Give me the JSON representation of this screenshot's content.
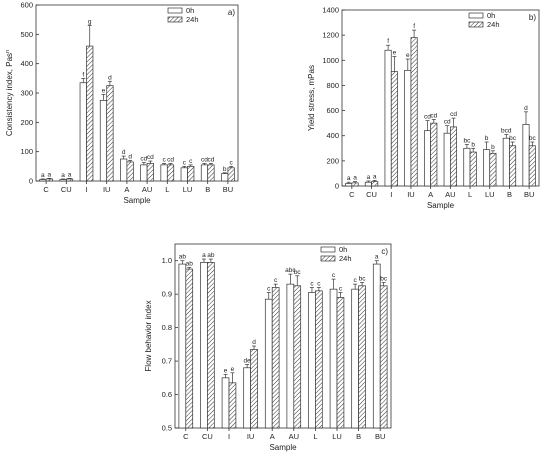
{
  "chart_data": [
    {
      "panel": "a)",
      "type": "bar",
      "ylabel": "Consistency index, Pas",
      "ylabel_sup": "n",
      "xlabel": "Sample",
      "ylim": [
        0,
        600
      ],
      "yticks": [
        0,
        100,
        200,
        300,
        400,
        500,
        600
      ],
      "grid": false,
      "legend_position": "top-right",
      "categories": [
        "C",
        "CU",
        "I",
        "IU",
        "A",
        "AU",
        "L",
        "LU",
        "B",
        "BU"
      ],
      "series": [
        {
          "name": "0h",
          "values": [
            5,
            5,
            335,
            275,
            75,
            55,
            55,
            45,
            55,
            25
          ],
          "errors": [
            2,
            2,
            15,
            20,
            10,
            8,
            5,
            5,
            5,
            3
          ],
          "letters": [
            "a",
            "a",
            "f",
            "e",
            "d",
            "cd",
            "c",
            "c",
            "cd",
            "b"
          ]
        },
        {
          "name": "24h",
          "values": [
            7,
            7,
            460,
            325,
            65,
            60,
            55,
            50,
            55,
            45
          ],
          "errors": [
            2,
            2,
            70,
            15,
            5,
            8,
            5,
            5,
            5,
            5
          ],
          "letters": [
            "a",
            "a",
            "g",
            "d",
            "d",
            "cd",
            "cd",
            "c",
            "cd",
            "c"
          ]
        }
      ]
    },
    {
      "panel": "b)",
      "type": "bar",
      "ylabel": "Yield stress, mPas",
      "xlabel": "Sample",
      "ylim": [
        0,
        1400
      ],
      "yticks": [
        0,
        200,
        400,
        600,
        800,
        1000,
        1200,
        1400
      ],
      "grid": false,
      "legend_position": "top-right",
      "categories": [
        "C",
        "CU",
        "I",
        "IU",
        "A",
        "AU",
        "L",
        "LU",
        "B",
        "BU"
      ],
      "series": [
        {
          "name": "0h",
          "values": [
            20,
            30,
            1080,
            920,
            440,
            420,
            300,
            290,
            380,
            490
          ],
          "errors": [
            10,
            10,
            40,
            90,
            80,
            60,
            30,
            60,
            30,
            100
          ],
          "letters": [
            "a",
            "a",
            "f",
            "e",
            "cd",
            "cd",
            "bc",
            "b",
            "bcd",
            "d"
          ]
        },
        {
          "name": "24h",
          "values": [
            25,
            35,
            910,
            1180,
            500,
            470,
            270,
            260,
            320,
            320
          ],
          "errors": [
            10,
            10,
            120,
            60,
            30,
            70,
            30,
            20,
            30,
            30
          ],
          "letters": [
            "a",
            "a",
            "e",
            "f",
            "cd",
            "cd",
            "b",
            "b",
            "bc",
            "bc"
          ]
        }
      ]
    },
    {
      "panel": "c)",
      "type": "bar",
      "ylabel": "Flow behavior index",
      "xlabel": "Sample",
      "ylim": [
        0.5,
        1.05
      ],
      "yticks": [
        0.5,
        0.6,
        0.7,
        0.8,
        0.9,
        1.0
      ],
      "grid": false,
      "legend_position": "top-right",
      "categories": [
        "C",
        "CU",
        "I",
        "IU",
        "A",
        "AU",
        "L",
        "LU",
        "B",
        "BU"
      ],
      "series": [
        {
          "name": "0h",
          "values": [
            0.99,
            0.995,
            0.65,
            0.68,
            0.885,
            0.93,
            0.905,
            0.915,
            0.915,
            0.99
          ],
          "errors": [
            0.01,
            0.01,
            0.01,
            0.01,
            0.02,
            0.03,
            0.015,
            0.03,
            0.015,
            0.01
          ],
          "letters": [
            "ab",
            "a",
            "e",
            "de",
            "c",
            "abc",
            "c",
            "c",
            "c",
            "a"
          ]
        },
        {
          "name": "24h",
          "values": [
            0.975,
            0.995,
            0.635,
            0.735,
            0.92,
            0.925,
            0.91,
            0.89,
            0.925,
            0.925
          ],
          "errors": [
            0.005,
            0.01,
            0.03,
            0.01,
            0.01,
            0.03,
            0.01,
            0.015,
            0.01,
            0.01
          ],
          "letters": [
            "ab",
            "ab",
            "e",
            "d",
            "c",
            "bc",
            "c",
            "c",
            "bc",
            "bc"
          ]
        }
      ]
    }
  ]
}
